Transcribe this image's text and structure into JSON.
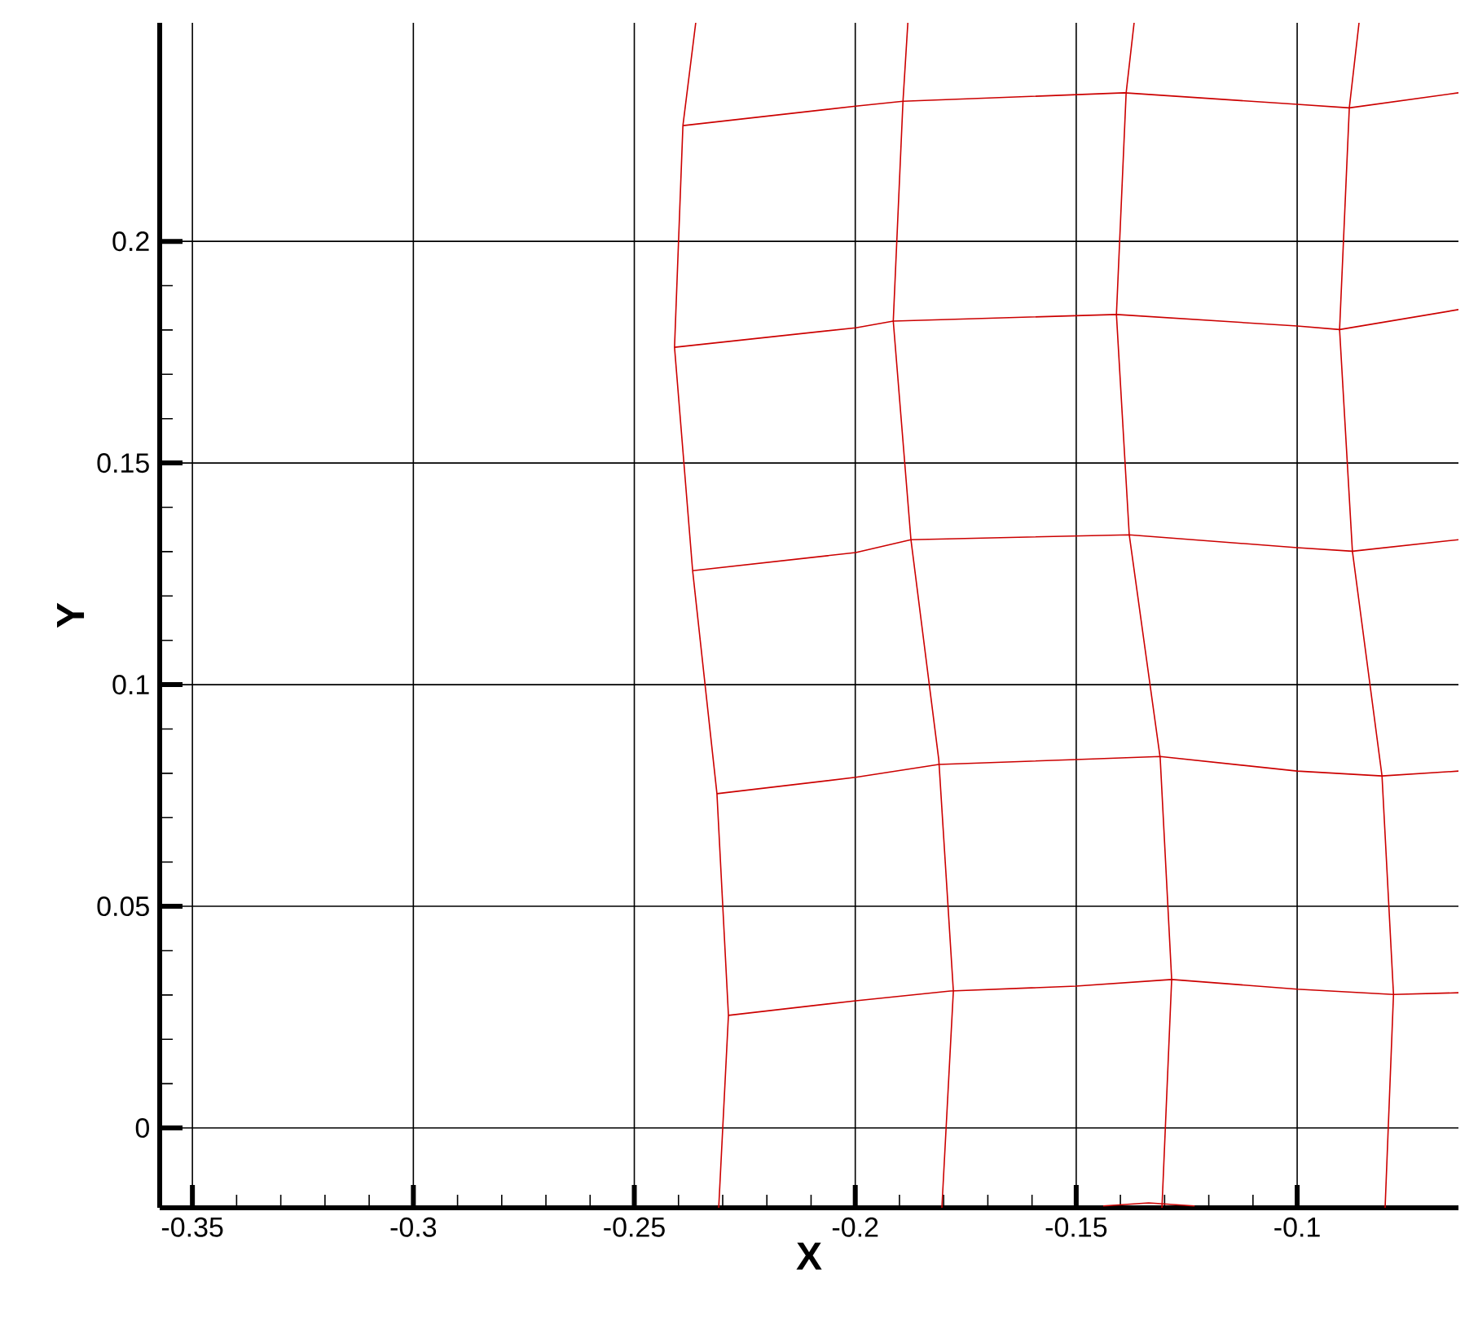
{
  "chart_data": {
    "type": "line",
    "xlabel": "X",
    "ylabel": "Y",
    "xlim": [
      -0.3574,
      -0.0635
    ],
    "ylim": [
      -0.018,
      0.2493
    ],
    "xticks": [
      -0.35,
      -0.3,
      -0.25,
      -0.2,
      -0.15,
      -0.1
    ],
    "yticks": [
      0,
      0.05,
      0.1,
      0.15,
      0.2
    ],
    "grid": true,
    "marker": "none",
    "line_style": "solid",
    "series": [
      {
        "color": "#cc0000",
        "x": [
          -0.2361,
          -0.239,
          -0.2409,
          -0.2368,
          -0.2313,
          -0.2287,
          -0.2309
        ],
        "values": [
          0.2493,
          0.2261,
          0.1761,
          0.1257,
          0.0754,
          0.0254,
          -0.018
        ]
      },
      {
        "color": "#cc0000",
        "x": [
          -0.1881,
          -0.1892,
          -0.1914,
          -0.1874,
          -0.1811,
          -0.1778,
          -0.1804
        ],
        "values": [
          0.2493,
          0.2316,
          0.182,
          0.1327,
          0.0831,
          0.0309,
          -0.018
        ]
      },
      {
        "color": "#cc0000",
        "x": [
          -0.1369,
          -0.1387,
          -0.1409,
          -0.138,
          -0.131,
          -0.1284,
          -0.1306
        ],
        "values": [
          0.2493,
          0.2335,
          0.1835,
          0.1338,
          0.0835,
          0.0335,
          -0.018
        ]
      },
      {
        "color": "#cc0000",
        "x": [
          -0.086,
          -0.0882,
          -0.0904,
          -0.0875,
          -0.0808,
          -0.0782,
          -0.0801
        ],
        "values": [
          0.2493,
          0.2301,
          0.1801,
          0.1301,
          0.0794,
          0.0301,
          -0.018
        ]
      },
      {
        "color": "#cc0000",
        "x": [
          -0.239,
          -0.1999,
          -0.1892,
          -0.1391,
          -0.1,
          -0.0882,
          -0.0635
        ],
        "values": [
          0.2261,
          0.2305,
          0.2316,
          0.2335,
          0.2309,
          0.2301,
          0.2335
        ]
      },
      {
        "color": "#cc0000",
        "x": [
          -0.2409,
          -0.1999,
          -0.1914,
          -0.1409,
          -0.1,
          -0.0904,
          -0.0635
        ],
        "values": [
          0.1761,
          0.1805,
          0.182,
          0.1835,
          0.1809,
          0.1801,
          0.1846
        ]
      },
      {
        "color": "#cc0000",
        "x": [
          -0.2368,
          -0.1999,
          -0.1874,
          -0.138,
          -0.1,
          -0.0875,
          -0.0635
        ],
        "values": [
          0.1257,
          0.1298,
          0.1327,
          0.1338,
          0.1309,
          0.1301,
          0.1327
        ]
      },
      {
        "color": "#cc0000",
        "x": [
          -0.2313,
          -0.1999,
          -0.1811,
          -0.1501,
          -0.131,
          -0.1,
          -0.0808,
          -0.0635
        ],
        "values": [
          0.0754,
          0.0791,
          0.082,
          0.0831,
          0.0838,
          0.0805,
          0.0794,
          0.0805
        ]
      },
      {
        "color": "#cc0000",
        "x": [
          -0.2287,
          -0.1999,
          -0.1785,
          -0.1501,
          -0.1284,
          -0.1,
          -0.0782,
          -0.0635
        ],
        "values": [
          0.0254,
          0.0287,
          0.0309,
          0.032,
          0.0335,
          0.0313,
          0.0301,
          0.0305
        ]
      },
      {
        "color": "#cc0000",
        "x": [
          -0.1439,
          -0.1336,
          -0.1232
        ],
        "values": [
          -0.0176,
          -0.0169,
          -0.0176
        ]
      }
    ]
  }
}
